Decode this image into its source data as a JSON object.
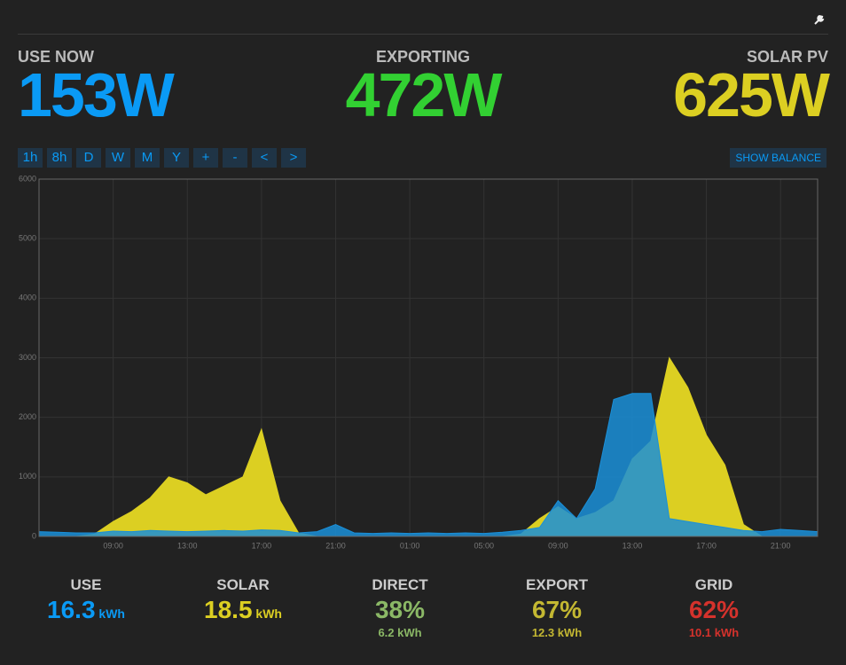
{
  "header": [
    {
      "label": "USE NOW",
      "value": "153W",
      "color": "#0a9af5"
    },
    {
      "label": "EXPORTING",
      "value": "472W",
      "color": "#32d032"
    },
    {
      "label": "SOLAR PV",
      "value": "625W",
      "color": "#dccf22"
    }
  ],
  "buttons": [
    "1h",
    "8h",
    "D",
    "W",
    "M",
    "Y",
    "+",
    "-",
    "<",
    ">"
  ],
  "balance_button": "SHOW BALANCE",
  "chart_data": {
    "type": "area",
    "categories": [
      null,
      null,
      null,
      null,
      "09:00",
      null,
      null,
      null,
      "13:00",
      null,
      null,
      null,
      "17:00",
      null,
      null,
      null,
      "21:00",
      null,
      null,
      null,
      "01:00",
      null,
      null,
      null,
      "05:00",
      null,
      null,
      null,
      "09:00",
      null,
      null,
      null,
      "13:00",
      null,
      null,
      null,
      "17:00",
      null,
      null,
      null,
      "21:00",
      null,
      null
    ],
    "series": [
      {
        "name": "solar",
        "color": "#dccf22",
        "values": [
          0,
          0,
          0,
          40,
          250,
          420,
          650,
          1000,
          900,
          700,
          850,
          1000,
          1800,
          600,
          60,
          0,
          0,
          0,
          0,
          0,
          0,
          0,
          0,
          0,
          0,
          0,
          40,
          300,
          500,
          300,
          400,
          600,
          1300,
          1600,
          3000,
          2500,
          1700,
          1200,
          200,
          0,
          0,
          0,
          0
        ]
      },
      {
        "name": "use",
        "color": "#1a8fd8",
        "values": [
          80,
          70,
          60,
          60,
          90,
          80,
          100,
          90,
          80,
          90,
          100,
          90,
          110,
          100,
          60,
          80,
          200,
          60,
          50,
          60,
          50,
          60,
          50,
          60,
          50,
          70,
          100,
          150,
          600,
          300,
          800,
          2300,
          2400,
          2400,
          300,
          250,
          200,
          150,
          100,
          80,
          120,
          100,
          80
        ]
      }
    ],
    "ylim": [
      0,
      6000
    ],
    "yticks": [
      0,
      1000,
      2000,
      3000,
      4000,
      5000,
      6000
    ],
    "grid": true
  },
  "summary": [
    {
      "label": "USE",
      "value": "16.3",
      "unit": "kWh",
      "color": "#0a9af5"
    },
    {
      "label": "SOLAR",
      "value": "18.5",
      "unit": "kWh",
      "color": "#dccf22"
    },
    {
      "label": "DIRECT",
      "value": "38%",
      "sub": "6.2 kWh",
      "color": "#8bb866"
    },
    {
      "label": "EXPORT",
      "value": "67%",
      "sub": "12.3 kWh",
      "color": "#c4b832"
    },
    {
      "label": "GRID",
      "value": "62%",
      "sub": "10.1 kWh",
      "color": "#d5322c"
    }
  ]
}
